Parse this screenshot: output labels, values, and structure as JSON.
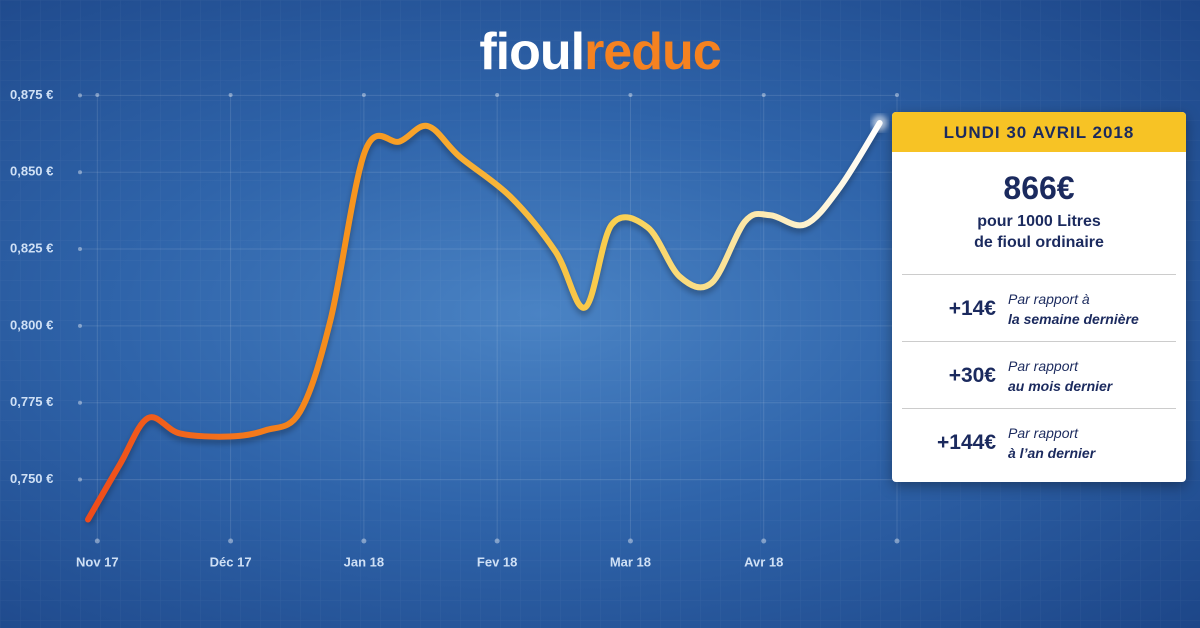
{
  "logo": [
    "fioul",
    "reduc"
  ],
  "card": {
    "date": "LUNDI 30 AVRIL 2018",
    "price": "866€",
    "line1": "pour 1000 Litres",
    "line2": "de fioul ordinaire",
    "rows": [
      {
        "delta": "+14€",
        "note1": "Par rapport à",
        "note2": "la  semaine dernière"
      },
      {
        "delta": "+30€",
        "note1": "Par rapport",
        "note2": "au mois dernier"
      },
      {
        "delta": "+144€",
        "note1": "Par rapport",
        "note2": "à l’an dernier"
      }
    ]
  },
  "chart_data": {
    "type": "line",
    "x": [
      -0.07,
      0.17,
      0.38,
      0.62,
      0.99,
      1.26,
      1.52,
      1.75,
      2.01,
      2.27,
      2.48,
      2.72,
      3.1,
      3.44,
      3.66,
      3.86,
      4.13,
      4.37,
      4.61,
      4.86,
      5.05,
      5.31,
      5.57,
      5.87
    ],
    "series": [
      {
        "values": [
          0.737,
          0.755,
          0.77,
          0.765,
          0.764,
          0.766,
          0.772,
          0.802,
          0.857,
          0.86,
          0.865,
          0.855,
          0.842,
          0.824,
          0.806,
          0.833,
          0.832,
          0.816,
          0.814,
          0.834,
          0.836,
          0.833,
          0.845,
          0.866
        ],
        "gradient": [
          "#ee4a1b",
          "#f7941d",
          "#f9cf4f",
          "#ffffff"
        ]
      }
    ],
    "xlim": [
      -0.1,
      6
    ],
    "xticks": [
      {
        "value": 0,
        "label": "Nov 17"
      },
      {
        "value": 1,
        "label": "Déc 17"
      },
      {
        "value": 2,
        "label": "Jan 18"
      },
      {
        "value": 3,
        "label": "Fev 18"
      },
      {
        "value": 4,
        "label": "Mar 18"
      },
      {
        "value": 5,
        "label": "Avr 18"
      },
      6
    ],
    "ylim": [
      0.73,
      0.88
    ],
    "yticks": [
      {
        "value": 0.75,
        "label": "0,750 €"
      },
      {
        "value": 0.775,
        "label": "0,775 €"
      },
      {
        "value": 0.8,
        "label": "0,800 €"
      },
      {
        "value": 0.825,
        "label": "0,825 €"
      },
      {
        "value": 0.85,
        "label": "0,850 €"
      },
      {
        "value": 0.875,
        "label": "0,875 €"
      }
    ],
    "grid": true
  }
}
